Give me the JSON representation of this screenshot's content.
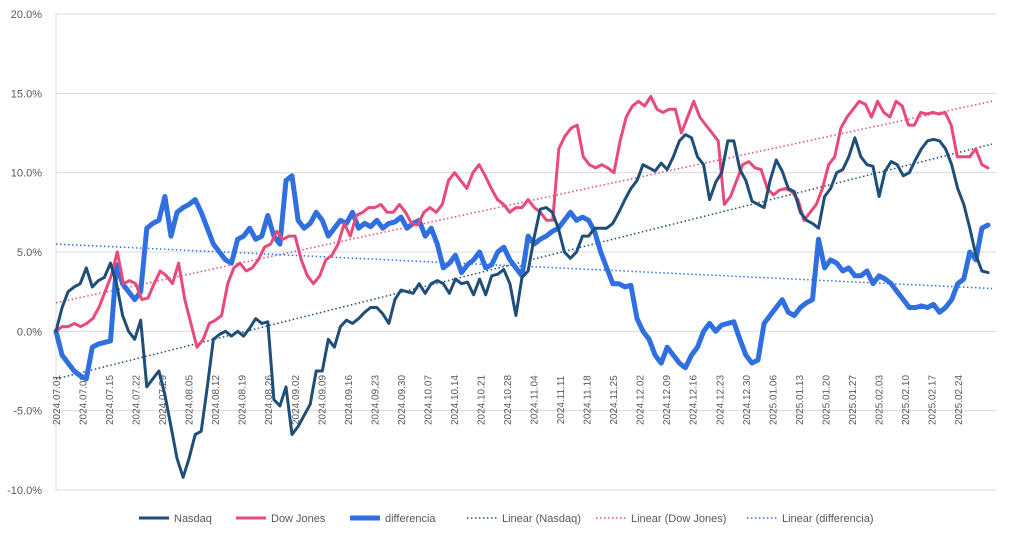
{
  "chart_data": {
    "type": "line",
    "title": "",
    "xlabel": "",
    "ylabel": "",
    "ylim": [
      -10,
      20
    ],
    "y_ticks": [
      "-10.0%",
      "-5.0%",
      "0.0%",
      "5.0%",
      "10.0%",
      "15.0%",
      "20.0%"
    ],
    "y_tick_values": [
      -10,
      -5,
      0,
      5,
      10,
      15,
      20
    ],
    "x_tick_labels": [
      "2024.07.01",
      "2024.07.08",
      "2024.07.15",
      "2024.07.22",
      "2024.07.29",
      "2024.08.05",
      "2024.08.12",
      "2024.08.19",
      "2024.08.26",
      "2024.09.02",
      "2024.09.09",
      "2024.09.16",
      "2024.09.23",
      "2024.09.30",
      "2024.10.07",
      "2024.10.14",
      "2024.10.21",
      "2024.10.28",
      "2024.11.04",
      "2024.11.11",
      "2024.11.18",
      "2024.11.25",
      "2024.12.02",
      "2024.12.09",
      "2024.12.16",
      "2024.12.23",
      "2024.12.30",
      "2025.01.06",
      "2025.01.13",
      "2025.01.20",
      "2025.01.27",
      "2025.02.03",
      "2025.02.10",
      "2025.02.17",
      "2025.02.24"
    ],
    "grid": true,
    "legend_position": "bottom",
    "series": [
      {
        "name": "Nasdaq",
        "color": "#1f4e79",
        "style": "solid",
        "values": [
          0.0,
          1.5,
          2.5,
          2.8,
          3.0,
          4.0,
          2.8,
          3.2,
          3.4,
          4.3,
          3.0,
          1.0,
          0.0,
          -0.5,
          0.7,
          -3.5,
          -3.0,
          -2.5,
          -4.0,
          -6.0,
          -8.0,
          -9.2,
          -8.0,
          -6.5,
          -6.3,
          -3.5,
          -0.5,
          -0.2,
          0.0,
          -0.3,
          0.0,
          -0.3,
          0.2,
          0.8,
          0.5,
          0.6,
          -4.3,
          -4.7,
          -3.5,
          -6.5,
          -6.0,
          -5.3,
          -4.6,
          -2.5,
          -2.5,
          -0.5,
          -1.0,
          0.3,
          0.7,
          0.5,
          0.8,
          1.2,
          1.5,
          1.5,
          1.1,
          0.5,
          2.0,
          2.6,
          2.5,
          2.4,
          3.0,
          2.4,
          3.0,
          3.2,
          3.0,
          2.4,
          3.3,
          3.0,
          3.1,
          2.3,
          3.3,
          2.3,
          3.5,
          3.6,
          3.9,
          3.0,
          1.0,
          3.4,
          3.8,
          5.9,
          7.7,
          7.8,
          7.5,
          6.5,
          5.0,
          4.6,
          5.0,
          6.0,
          6.0,
          6.5,
          6.5,
          6.5,
          6.8,
          7.5,
          8.3,
          9.0,
          9.5,
          10.5,
          10.3,
          10.1,
          10.6,
          10.2,
          11.0,
          12.0,
          12.4,
          12.2,
          11.0,
          10.5,
          8.3,
          9.4,
          10.0,
          12.0,
          12.0,
          10.2,
          9.5,
          8.2,
          8.0,
          7.8,
          9.5,
          10.8,
          10.1,
          9.0,
          8.8,
          7.5,
          7.0,
          6.8,
          6.5,
          8.5,
          9.0,
          10.0,
          10.2,
          11.0,
          12.2,
          11.0,
          10.5,
          10.4,
          8.5,
          10.1,
          10.7,
          10.5,
          9.8,
          10.0,
          10.8,
          11.5,
          12.0,
          12.1,
          12.0,
          11.5,
          10.5,
          9.0,
          8.0,
          6.5,
          4.8,
          3.8,
          3.7
        ],
        "trendline": {
          "name": "Linear (Nasdaq)",
          "color": "#1f4e79",
          "start": -3.0,
          "end": 11.8
        }
      },
      {
        "name": "Dow Jones",
        "color": "#e94a7a",
        "style": "solid",
        "values": [
          0.0,
          0.3,
          0.3,
          0.5,
          0.3,
          0.5,
          0.8,
          1.5,
          2.5,
          3.5,
          5.0,
          3.0,
          3.2,
          3.0,
          2.0,
          2.1,
          3.0,
          3.8,
          3.5,
          3.0,
          4.3,
          2.0,
          0.5,
          -1.0,
          -0.5,
          0.5,
          0.7,
          1.0,
          3.0,
          4.0,
          4.3,
          3.8,
          4.0,
          4.5,
          5.3,
          5.5,
          6.3,
          5.8,
          6.0,
          6.0,
          4.5,
          3.5,
          3.0,
          3.5,
          4.5,
          4.8,
          5.5,
          6.8,
          6.0,
          7.3,
          7.5,
          7.8,
          7.8,
          8.0,
          7.5,
          7.5,
          8.0,
          7.5,
          6.8,
          6.7,
          7.5,
          7.8,
          7.5,
          8.0,
          9.5,
          10.0,
          9.5,
          9.0,
          10.0,
          10.5,
          9.8,
          9.0,
          8.3,
          8.0,
          7.5,
          7.8,
          7.8,
          8.3,
          7.8,
          7.5,
          7.0,
          7.0,
          11.5,
          12.3,
          12.8,
          13.0,
          11.0,
          10.5,
          10.3,
          10.5,
          10.3,
          10.0,
          12.0,
          13.5,
          14.2,
          14.5,
          14.2,
          14.8,
          14.0,
          13.8,
          14.0,
          14.0,
          12.5,
          13.5,
          14.5,
          13.5,
          13.0,
          12.5,
          12.0,
          8.0,
          8.5,
          9.5,
          10.5,
          10.7,
          10.3,
          10.2,
          9.0,
          8.6,
          8.9,
          9.0,
          8.8,
          8.3,
          7.0,
          7.5,
          8.0,
          9.0,
          10.5,
          11.0,
          12.8,
          13.5,
          14.0,
          14.5,
          14.3,
          13.5,
          14.5,
          13.8,
          13.5,
          14.5,
          14.2,
          13.0,
          13.0,
          13.8,
          13.7,
          13.8,
          13.7,
          13.8,
          13.0,
          11.0,
          11.0,
          11.0,
          11.5,
          10.5,
          10.3
        ],
        "trendline": {
          "name": "Linear (Dow Jones)",
          "color": "#e94a7a",
          "start": 1.8,
          "end": 14.5
        }
      },
      {
        "name": "differencia",
        "color": "#2f6fe0",
        "style": "thick",
        "values": [
          0.0,
          -1.5,
          -2.0,
          -2.5,
          -2.8,
          -3.0,
          -1.0,
          -0.8,
          -0.7,
          -0.6,
          4.2,
          3.0,
          2.5,
          2.0,
          2.5,
          6.5,
          6.8,
          7.0,
          8.5,
          6.0,
          7.5,
          7.8,
          8.0,
          8.3,
          7.5,
          6.5,
          5.5,
          5.0,
          4.5,
          4.3,
          5.8,
          6.0,
          6.5,
          5.8,
          6.0,
          7.3,
          6.0,
          5.5,
          9.5,
          9.8,
          7.0,
          6.5,
          6.8,
          7.5,
          7.0,
          6.0,
          6.5,
          7.0,
          6.8,
          7.5,
          6.5,
          6.8,
          6.6,
          7.0,
          6.5,
          6.8,
          6.9,
          7.2,
          6.5,
          6.8,
          7.0,
          6.0,
          6.5,
          5.5,
          4.0,
          4.3,
          4.8,
          3.7,
          4.2,
          4.5,
          5.0,
          4.0,
          4.2,
          5.0,
          5.3,
          4.5,
          4.0,
          3.5,
          6.0,
          5.5,
          5.8,
          6.0,
          6.3,
          6.5,
          7.0,
          7.5,
          7.0,
          7.2,
          7.0,
          6.3,
          5.0,
          4.0,
          3.0,
          3.0,
          2.8,
          2.9,
          0.8,
          0.0,
          -0.5,
          -1.5,
          -2.0,
          -1.0,
          -1.5,
          -2.0,
          -2.3,
          -1.5,
          -1.0,
          0.0,
          0.5,
          0.0,
          0.4,
          0.5,
          0.6,
          -0.5,
          -1.5,
          -2.0,
          -1.8,
          0.5,
          1.0,
          1.5,
          2.0,
          1.2,
          1.0,
          1.5,
          1.8,
          2.0,
          5.8,
          4.0,
          4.5,
          4.3,
          3.8,
          4.0,
          3.5,
          3.5,
          3.8,
          3.0,
          3.5,
          3.3,
          3.0,
          2.5,
          2.0,
          1.5,
          1.5,
          1.6,
          1.5,
          1.7,
          1.2,
          1.5,
          2.0,
          3.0,
          3.3,
          5.0,
          4.5,
          6.5,
          6.7
        ],
        "trendline": {
          "name": "Linear (differencia)",
          "color": "#2f6fe0",
          "start": 5.5,
          "end": 2.7
        }
      }
    ],
    "legend_entries": [
      "Nasdaq",
      "Dow Jones",
      "differencia",
      "Linear (Nasdaq)",
      "Linear (Dow Jones)",
      "Linear (differencia)"
    ]
  }
}
